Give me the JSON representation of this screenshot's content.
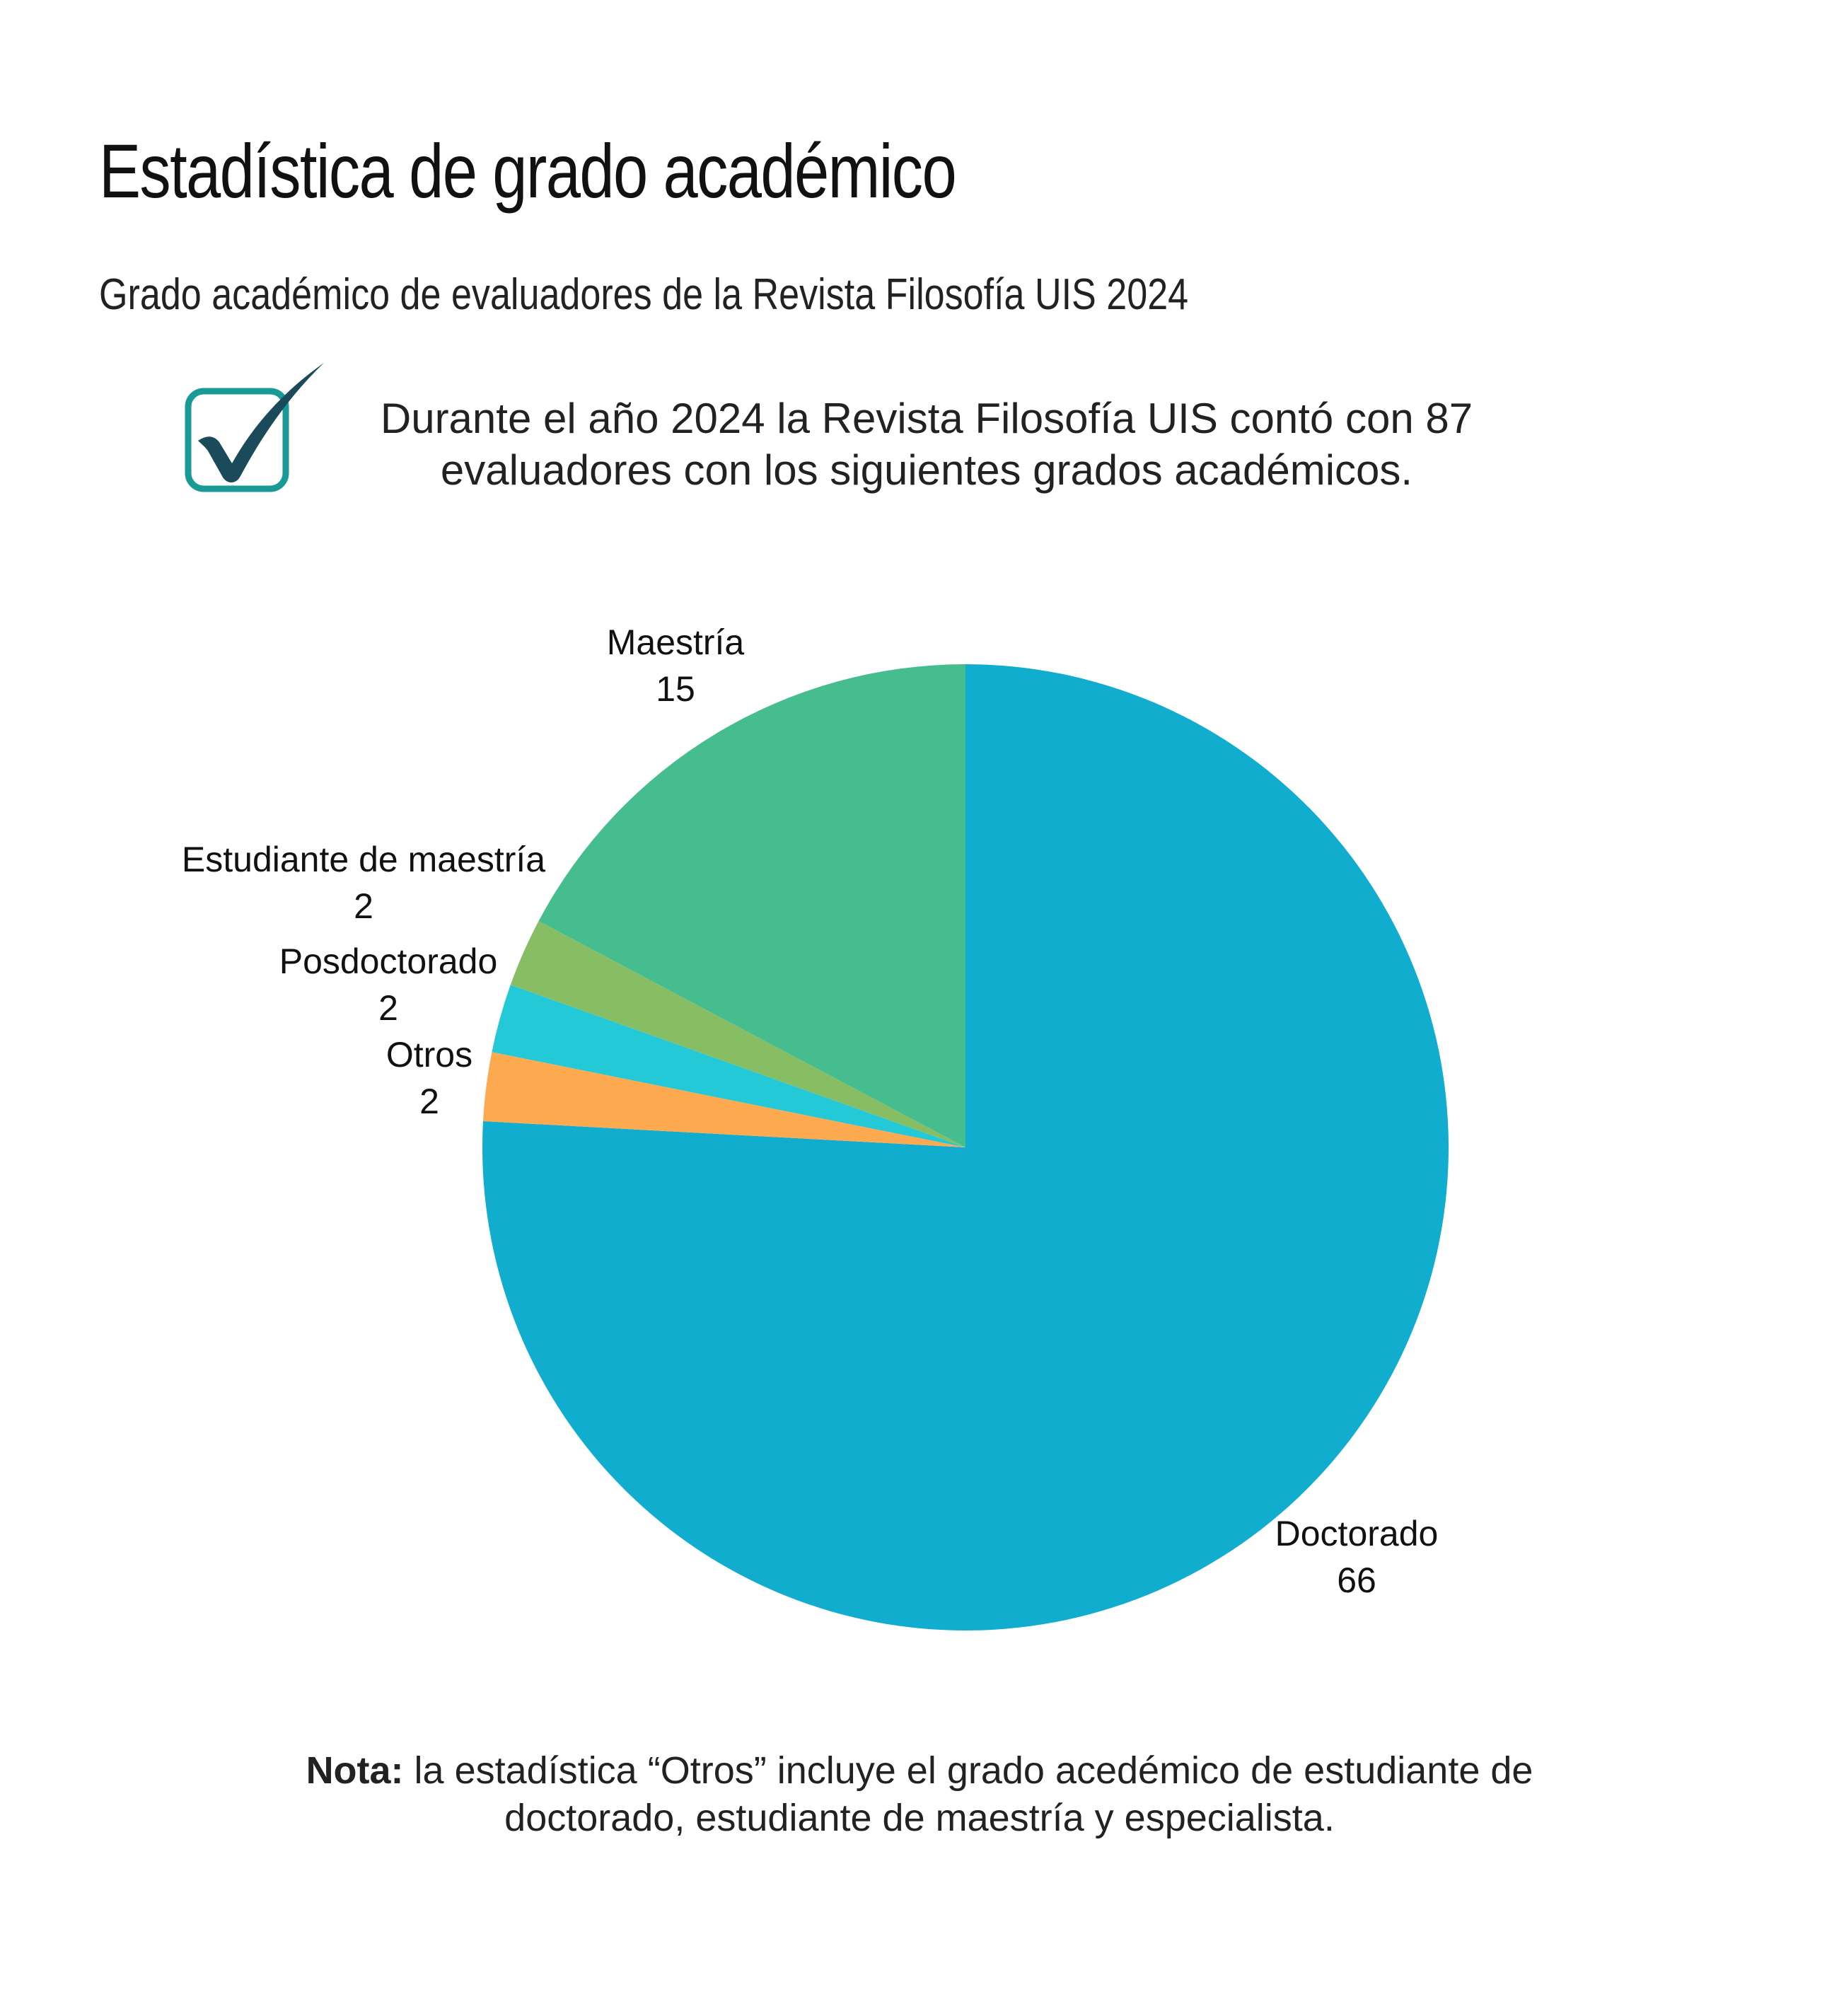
{
  "header": {
    "title": "Estadística de grado académico",
    "subtitle": "Grado académico de evaluadores de la Revista Filosofía UIS 2024"
  },
  "intro": {
    "icon": "checkmark-box-icon",
    "text": "Durante el año 2024 la Revista Filosofía UIS contó con 87 evaluadores con los siguientes grados académicos."
  },
  "chart_data": {
    "type": "pie",
    "title": "",
    "start_angle_deg": 0,
    "direction": "clockwise",
    "slices": [
      {
        "label": "Doctorado",
        "value": 66,
        "color": "#11ADCE"
      },
      {
        "label": "Otros",
        "value": 2,
        "color": "#FDA94F"
      },
      {
        "label": "Posdoctorado",
        "value": 2,
        "color": "#23C9D6"
      },
      {
        "label": "Estudiante de maestría",
        "value": 2,
        "color": "#87BE63"
      },
      {
        "label": "Maestría",
        "value": 15,
        "color": "#45BD8F"
      }
    ]
  },
  "footer": {
    "note_label": "Nota:",
    "note_text": " la estadística “Otros” incluye el grado acedémico de estudiante de doctorado, estudiante de maestría y especialista."
  },
  "colors": {
    "icon_border": "#1A9A96",
    "icon_check": "#1B4A5A"
  }
}
